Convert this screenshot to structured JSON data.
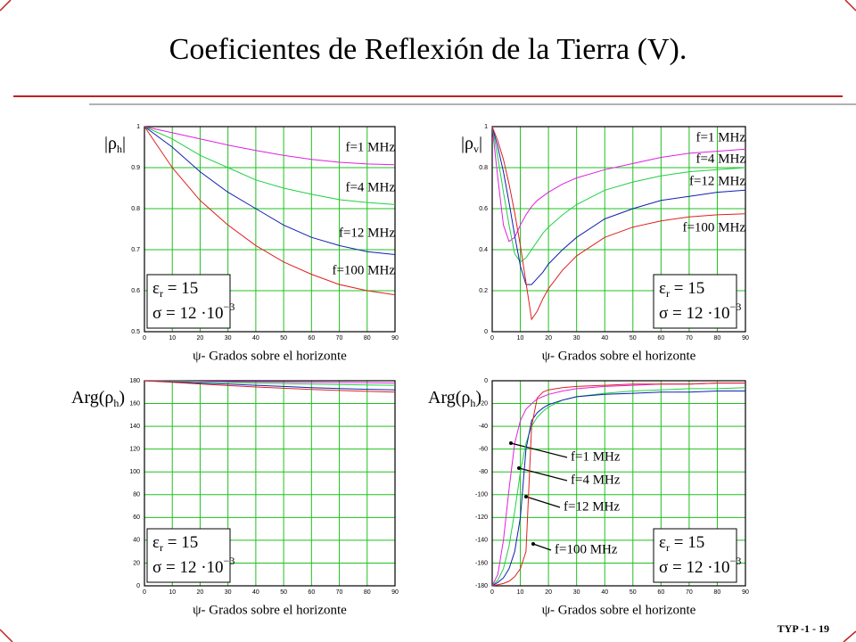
{
  "title": "Coeficientes de Reflexión de la Tierra (V).",
  "footer": "TYP -1 - 19",
  "chart_data": [
    {
      "type": "line",
      "ylabel": [
        "|ρ",
        "h",
        "|"
      ],
      "xlabel": "ψ- Grados sobre el horizonte",
      "x": [
        0,
        10,
        20,
        30,
        40,
        50,
        60,
        70,
        80,
        90
      ],
      "xlim": [
        0,
        90
      ],
      "xticks": [
        0,
        10,
        20,
        30,
        40,
        50,
        60,
        70,
        80,
        90
      ],
      "ylim": [
        0.5,
        1
      ],
      "yticks": [
        0.5,
        0.6,
        0.7,
        0.8,
        0.9,
        1
      ],
      "grid": true,
      "series": [
        {
          "name": "f=1 MHz",
          "color": "#e020e0",
          "values": [
            1,
            0.985,
            0.97,
            0.955,
            0.942,
            0.93,
            0.92,
            0.913,
            0.909,
            0.907
          ]
        },
        {
          "name": "f=4 MHz",
          "color": "#20d040",
          "values": [
            1,
            0.97,
            0.93,
            0.9,
            0.87,
            0.85,
            0.835,
            0.822,
            0.815,
            0.81
          ]
        },
        {
          "name": "f=12 MHz",
          "color": "#1020b0",
          "values": [
            1,
            0.95,
            0.89,
            0.84,
            0.8,
            0.76,
            0.73,
            0.71,
            0.695,
            0.688
          ]
        },
        {
          "name": "f=100 MHz",
          "color": "#e02020",
          "values": [
            1,
            0.9,
            0.82,
            0.76,
            0.71,
            0.67,
            0.64,
            0.615,
            0.6,
            0.59
          ]
        }
      ],
      "annotations": [
        [
          "ε",
          "r",
          " = 15"
        ],
        [
          "σ",
          " = 12 ·10",
          "−3"
        ]
      ]
    },
    {
      "type": "line",
      "ylabel": [
        "|ρ",
        "v",
        "|"
      ],
      "xlabel": "ψ- Grados sobre el horizonte",
      "x": [
        0,
        2,
        4,
        6,
        8,
        10,
        12,
        14,
        16,
        18,
        20,
        25,
        30,
        40,
        50,
        60,
        70,
        80,
        90
      ],
      "xlim": [
        0,
        90
      ],
      "xticks": [
        0,
        10,
        20,
        30,
        40,
        50,
        60,
        70,
        80,
        90
      ],
      "ylim": [
        0,
        1
      ],
      "yticks": [
        0,
        0.2,
        0.4,
        0.6,
        0.8,
        1
      ],
      "grid": true,
      "series": [
        {
          "name": "f=1 MHz",
          "color": "#e020e0",
          "values": [
            1,
            0.75,
            0.52,
            0.44,
            0.46,
            0.52,
            0.57,
            0.61,
            0.64,
            0.66,
            0.68,
            0.72,
            0.75,
            0.79,
            0.82,
            0.85,
            0.87,
            0.88,
            0.89
          ]
        },
        {
          "name": "f=4 MHz",
          "color": "#20d040",
          "values": [
            1,
            0.85,
            0.68,
            0.52,
            0.38,
            0.34,
            0.36,
            0.4,
            0.44,
            0.48,
            0.51,
            0.57,
            0.62,
            0.69,
            0.73,
            0.76,
            0.78,
            0.79,
            0.8
          ]
        },
        {
          "name": "f=12 MHz",
          "color": "#1020b0",
          "values": [
            1,
            0.9,
            0.78,
            0.63,
            0.47,
            0.32,
            0.23,
            0.23,
            0.26,
            0.29,
            0.33,
            0.4,
            0.46,
            0.55,
            0.6,
            0.64,
            0.66,
            0.68,
            0.69
          ]
        },
        {
          "name": "f=100 MHz",
          "color": "#e02020",
          "values": [
            1,
            0.93,
            0.84,
            0.72,
            0.58,
            0.42,
            0.24,
            0.06,
            0.1,
            0.16,
            0.21,
            0.3,
            0.37,
            0.46,
            0.51,
            0.54,
            0.56,
            0.57,
            0.575
          ]
        }
      ],
      "annotations": [
        [
          "ε",
          "r",
          " = 15"
        ],
        [
          "σ",
          " = 12 ·10",
          "−3"
        ]
      ]
    },
    {
      "type": "line",
      "ylabel": [
        "Arg(ρ",
        "h",
        ")"
      ],
      "xlabel": "ψ- Grados sobre el horizonte",
      "x": [
        0,
        10,
        20,
        30,
        40,
        50,
        60,
        70,
        80,
        90
      ],
      "xlim": [
        0,
        90
      ],
      "xticks": [
        0,
        10,
        20,
        30,
        40,
        50,
        60,
        70,
        80,
        90
      ],
      "ylim": [
        0,
        180
      ],
      "yticks": [
        0,
        20,
        40,
        60,
        80,
        100,
        120,
        140,
        160,
        180
      ],
      "grid": true,
      "series": [
        {
          "color": "#e020e0",
          "values": [
            180,
            179.8,
            179.6,
            179.3,
            179,
            178.8,
            178.6,
            178.4,
            178.2,
            178
          ]
        },
        {
          "color": "#20d040",
          "values": [
            180,
            179.5,
            179,
            178.4,
            177.9,
            177.4,
            177,
            176.6,
            176.3,
            176
          ]
        },
        {
          "color": "#1020b0",
          "values": [
            180,
            179,
            178,
            177,
            176,
            175,
            174,
            173.2,
            172.5,
            172
          ]
        },
        {
          "color": "#e02020",
          "values": [
            180,
            178.6,
            177.2,
            175.8,
            174.5,
            173.4,
            172.4,
            171.5,
            170.7,
            170
          ]
        }
      ],
      "annotations": [
        [
          "ε",
          "r",
          " = 15"
        ],
        [
          "σ",
          " = 12 ·10",
          "−3"
        ]
      ]
    },
    {
      "type": "line",
      "ylabel": [
        "Arg(ρ",
        "h",
        ")"
      ],
      "xlabel": "ψ- Grados sobre el horizonte",
      "x": [
        0,
        2,
        4,
        6,
        8,
        10,
        12,
        14,
        16,
        18,
        20,
        25,
        30,
        40,
        50,
        60,
        70,
        80,
        90
      ],
      "xlim": [
        0,
        90
      ],
      "xticks": [
        0,
        10,
        20,
        30,
        40,
        50,
        60,
        70,
        80,
        90
      ],
      "ylim": [
        -180,
        0
      ],
      "yticks": [
        -180,
        -160,
        -140,
        -120,
        -100,
        -80,
        -60,
        -40,
        -20,
        0
      ],
      "grid": true,
      "series": [
        {
          "name": "f=1 MHz",
          "color": "#e020e0",
          "values": [
            -180,
            -170,
            -140,
            -95,
            -55,
            -35,
            -25,
            -20,
            -16,
            -14,
            -12,
            -9,
            -7,
            -5,
            -4,
            -3,
            -3,
            -2,
            -2
          ]
        },
        {
          "name": "f=4 MHz",
          "color": "#20d040",
          "values": [
            -180,
            -175,
            -165,
            -145,
            -115,
            -80,
            -55,
            -40,
            -32,
            -27,
            -23,
            -17,
            -14,
            -11,
            -9,
            -8,
            -7,
            -7,
            -6
          ]
        },
        {
          "name": "f=12 MHz",
          "color": "#1020b0",
          "values": [
            -180,
            -177,
            -173,
            -165,
            -150,
            -120,
            -60,
            -35,
            -28,
            -24,
            -21,
            -17,
            -14,
            -12,
            -11,
            -10,
            -10,
            -9,
            -9
          ]
        },
        {
          "name": "f=100 MHz",
          "color": "#e02020",
          "values": [
            -180,
            -179,
            -178,
            -176,
            -172,
            -165,
            -150,
            -40,
            -15,
            -10,
            -8,
            -6,
            -5,
            -4,
            -3,
            -3,
            -3,
            -2,
            -2
          ]
        }
      ],
      "annotations": [
        [
          "ε",
          "r",
          " = 15"
        ],
        [
          "σ",
          " = 12 ·10",
          "−3"
        ]
      ]
    }
  ]
}
